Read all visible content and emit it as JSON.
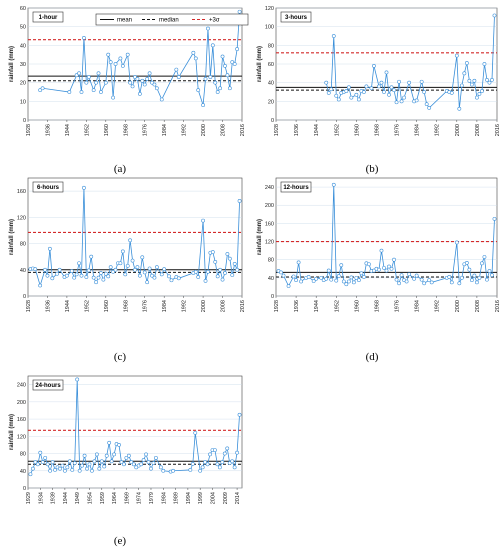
{
  "legend": {
    "mean": "mean",
    "median": "median",
    "sigma": "+3σ"
  },
  "colors": {
    "series": "#3a8fd9",
    "mean": "#111111",
    "median": "#111111",
    "sigma": "#d42a2a",
    "grid": "#c8d8e8"
  },
  "chart_data": [
    {
      "type": "line",
      "panel_label": "(a)",
      "title": "1-hour",
      "ylabel": "rainfall (mm)",
      "ylim": [
        0,
        60
      ],
      "yticks": [
        0,
        10,
        20,
        30,
        40,
        50,
        60
      ],
      "xlim": [
        1928,
        2016
      ],
      "xticks": [
        "1928",
        "1936",
        "1944",
        "1952",
        "1960",
        "1968",
        "1976",
        "1984",
        "1992",
        "2000",
        "2008",
        "2016"
      ],
      "mean": 23.5,
      "median": 21.0,
      "plus3sigma": 43.0,
      "series": {
        "x": [
          1933,
          1934,
          1945,
          1948,
          1949,
          1950,
          1951,
          1952,
          1953,
          1955,
          1956,
          1957,
          1958,
          1960,
          1961,
          1962,
          1963,
          1964,
          1966,
          1967,
          1969,
          1970,
          1971,
          1972,
          1973,
          1974,
          1975,
          1976,
          1977,
          1978,
          1979,
          1980,
          1981,
          1983,
          1989,
          1990,
          1996,
          1997,
          1998,
          2000,
          2001,
          2002,
          2003,
          2004,
          2005,
          2006,
          2007,
          2008,
          2009,
          2010,
          2011,
          2012,
          2013,
          2014,
          2015
        ],
        "y": [
          16,
          17,
          15,
          24,
          25,
          15,
          44,
          20,
          23,
          16,
          20,
          25,
          15,
          20,
          35,
          31,
          12,
          30,
          33,
          29,
          35,
          20,
          18,
          23,
          22,
          14,
          21,
          19,
          22,
          25,
          20,
          19,
          17,
          11,
          27,
          23,
          36,
          33,
          16,
          8,
          22,
          49,
          23,
          40,
          20,
          15,
          17,
          34,
          29,
          24,
          17,
          31,
          30,
          38,
          58
        ]
      }
    },
    {
      "type": "line",
      "panel_label": "(b)",
      "title": "3-hours",
      "ylabel": "rainfall (mm)",
      "ylim": [
        0,
        120
      ],
      "yticks": [
        0,
        20,
        40,
        60,
        80,
        100,
        120
      ],
      "xlim": [
        1928,
        2016
      ],
      "xticks": [
        "1928",
        "1936",
        "1944",
        "1952",
        "1960",
        "1968",
        "1976",
        "1984",
        "1992",
        "2000",
        "2008",
        "2016"
      ],
      "mean": 35.0,
      "median": 32.0,
      "plus3sigma": 72.0,
      "series": {
        "x": [
          1948,
          1949,
          1950,
          1951,
          1952,
          1953,
          1954,
          1955,
          1956,
          1957,
          1958,
          1960,
          1961,
          1962,
          1963,
          1964,
          1966,
          1967,
          1969,
          1970,
          1971,
          1972,
          1973,
          1974,
          1975,
          1976,
          1977,
          1978,
          1979,
          1981,
          1983,
          1984,
          1986,
          1987,
          1988,
          1989,
          1996,
          1997,
          1998,
          2000,
          2001,
          2002,
          2003,
          2004,
          2005,
          2006,
          2007,
          2008,
          2009,
          2010,
          2011,
          2012,
          2013,
          2014,
          2015
        ],
        "y": [
          40,
          29,
          33,
          90,
          26,
          22,
          29,
          30,
          31,
          35,
          24,
          27,
          22,
          31,
          30,
          36,
          34,
          58,
          36,
          40,
          30,
          51,
          27,
          35,
          32,
          19,
          41,
          20,
          24,
          40,
          20,
          21,
          41,
          30,
          17,
          13,
          31,
          30,
          29,
          69,
          12,
          37,
          50,
          61,
          42,
          38,
          42,
          24,
          28,
          31,
          60,
          43,
          40,
          43,
          112
        ]
      }
    },
    {
      "type": "line",
      "panel_label": "(c)",
      "title": "6-hours",
      "ylabel": "rainfall (mm)",
      "ylim": [
        0,
        180
      ],
      "yticks": [
        0,
        40,
        80,
        120,
        160
      ],
      "xlim": [
        1928,
        2016
      ],
      "xticks": [
        "1928",
        "1936",
        "1944",
        "1952",
        "1960",
        "1968",
        "1976",
        "1984",
        "1992",
        "2000",
        "2008",
        "2016"
      ],
      "mean": 40.0,
      "median": 36.0,
      "plus3sigma": 97.0,
      "series": {
        "x": [
          1929,
          1930,
          1931,
          1933,
          1935,
          1936,
          1937,
          1938,
          1940,
          1941,
          1943,
          1944,
          1946,
          1947,
          1948,
          1949,
          1950,
          1951,
          1952,
          1953,
          1954,
          1955,
          1956,
          1957,
          1958,
          1959,
          1960,
          1961,
          1962,
          1963,
          1964,
          1965,
          1966,
          1967,
          1968,
          1969,
          1970,
          1971,
          1972,
          1973,
          1974,
          1975,
          1976,
          1977,
          1978,
          1979,
          1980,
          1981,
          1983,
          1984,
          1986,
          1987,
          1989,
          1990,
          1996,
          1997,
          1998,
          2000,
          2001,
          2002,
          2003,
          2004,
          2005,
          2006,
          2007,
          2008,
          2009,
          2010,
          2011,
          2012,
          2013,
          2014,
          2015
        ],
        "y": [
          41,
          42,
          41,
          16,
          40,
          31,
          72,
          27,
          34,
          40,
          29,
          31,
          38,
          28,
          33,
          50,
          31,
          165,
          29,
          39,
          60,
          28,
          21,
          28,
          35,
          25,
          34,
          30,
          44,
          37,
          40,
          50,
          50,
          68,
          33,
          46,
          85,
          54,
          40,
          44,
          31,
          59,
          36,
          21,
          42,
          31,
          28,
          44,
          33,
          41,
          30,
          24,
          29,
          27,
          35,
          37,
          29,
          115,
          23,
          37,
          66,
          67,
          52,
          30,
          40,
          25,
          35,
          64,
          57,
          32,
          49,
          40,
          145
        ]
      }
    },
    {
      "type": "line",
      "panel_label": "(d)",
      "title": "12-hours",
      "ylabel": "rainfall (mm)",
      "ylim": [
        0,
        260
      ],
      "yticks": [
        0,
        40,
        80,
        120,
        160,
        200,
        240
      ],
      "xlim": [
        1928,
        2016
      ],
      "xticks": [
        "1928",
        "1936",
        "1944",
        "1952",
        "1960",
        "1968",
        "1976",
        "1984",
        "1992",
        "2000",
        "2008",
        "2016"
      ],
      "mean": 52.0,
      "median": 42.0,
      "plus3sigma": 120.0,
      "series": {
        "x": [
          1929,
          1930,
          1931,
          1933,
          1935,
          1936,
          1937,
          1938,
          1940,
          1941,
          1943,
          1944,
          1946,
          1947,
          1948,
          1949,
          1950,
          1951,
          1952,
          1953,
          1954,
          1955,
          1956,
          1957,
          1958,
          1959,
          1960,
          1961,
          1962,
          1963,
          1964,
          1965,
          1966,
          1967,
          1968,
          1969,
          1970,
          1971,
          1972,
          1973,
          1974,
          1975,
          1976,
          1977,
          1978,
          1979,
          1980,
          1981,
          1983,
          1984,
          1986,
          1987,
          1989,
          1990,
          1996,
          1997,
          1998,
          2000,
          2001,
          2002,
          2003,
          2004,
          2005,
          2006,
          2007,
          2008,
          2009,
          2010,
          2011,
          2012,
          2013,
          2014,
          2015
        ],
        "y": [
          55,
          52,
          45,
          22,
          43,
          35,
          74,
          32,
          40,
          42,
          33,
          38,
          40,
          35,
          38,
          56,
          36,
          245,
          34,
          44,
          68,
          32,
          26,
          32,
          41,
          30,
          40,
          35,
          50,
          42,
          72,
          70,
          55,
          56,
          60,
          58,
          100,
          62,
          56,
          65,
          60,
          80,
          36,
          28,
          46,
          35,
          32,
          48,
          38,
          45,
          36,
          28,
          35,
          30,
          40,
          42,
          30,
          118,
          28,
          40,
          70,
          73,
          58,
          35,
          45,
          30,
          40,
          72,
          86,
          36,
          55,
          46,
          170
        ]
      }
    },
    {
      "type": "line",
      "panel_label": "(e)",
      "title": "24-hours",
      "ylabel": "rainfall (mm)",
      "ylim": [
        0,
        260
      ],
      "yticks": [
        0,
        40,
        80,
        120,
        160,
        200,
        240
      ],
      "xlim": [
        1929,
        2016
      ],
      "xticks": [
        "1929",
        "1934",
        "1939",
        "1944",
        "1949",
        "1954",
        "1959",
        "1964",
        "1969",
        "1974",
        "1979",
        "1984",
        "1989",
        "1994",
        "1999",
        "2004",
        "2009",
        "2014"
      ],
      "mean": 62.0,
      "median": 55.0,
      "plus3sigma": 134.0,
      "series": {
        "x": [
          1930,
          1931,
          1932,
          1933,
          1934,
          1935,
          1936,
          1937,
          1938,
          1939,
          1940,
          1941,
          1942,
          1943,
          1944,
          1945,
          1946,
          1947,
          1948,
          1949,
          1950,
          1951,
          1952,
          1953,
          1954,
          1955,
          1956,
          1957,
          1958,
          1959,
          1960,
          1961,
          1962,
          1963,
          1964,
          1965,
          1966,
          1967,
          1968,
          1969,
          1970,
          1971,
          1972,
          1973,
          1974,
          1975,
          1976,
          1977,
          1978,
          1979,
          1980,
          1981,
          1983,
          1984,
          1987,
          1988,
          1995,
          1996,
          1997,
          1999,
          2000,
          2001,
          2002,
          2003,
          2004,
          2005,
          2006,
          2007,
          2008,
          2009,
          2010,
          2011,
          2012,
          2013,
          2014,
          2015
        ],
        "y": [
          32,
          45,
          60,
          55,
          82,
          60,
          70,
          55,
          40,
          60,
          42,
          48,
          45,
          52,
          40,
          48,
          62,
          42,
          58,
          252,
          40,
          52,
          75,
          45,
          55,
          40,
          62,
          78,
          45,
          62,
          50,
          75,
          105,
          62,
          78,
          102,
          100,
          60,
          55,
          70,
          75,
          60,
          55,
          48,
          52,
          55,
          65,
          78,
          60,
          45,
          58,
          70,
          48,
          40,
          38,
          40,
          42,
          56,
          128,
          40,
          48,
          60,
          55,
          78,
          88,
          88,
          55,
          48,
          60,
          80,
          92,
          58,
          62,
          48,
          82,
          170
        ]
      }
    }
  ]
}
